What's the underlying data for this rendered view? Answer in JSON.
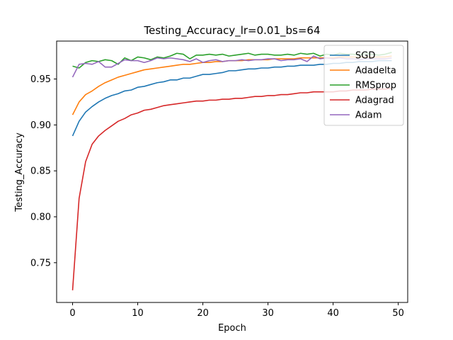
{
  "chart_data": {
    "type": "line",
    "title": "Testing_Accuracy_lr=0.01_bs=64",
    "xlabel": "Epoch",
    "ylabel": "Testing_Accuracy",
    "xlim": [
      -2.45,
      51.45
    ],
    "ylim": [
      0.7067,
      0.9913
    ],
    "xticks": [
      "0",
      "10",
      "20",
      "30",
      "40",
      "50"
    ],
    "yticks": [
      "0.75",
      "0.80",
      "0.85",
      "0.90",
      "0.95"
    ],
    "grid": false,
    "legend_position": "top-right",
    "x": [
      0,
      1,
      2,
      3,
      4,
      5,
      6,
      7,
      8,
      9,
      10,
      11,
      12,
      13,
      14,
      15,
      16,
      17,
      18,
      19,
      20,
      21,
      22,
      23,
      24,
      25,
      26,
      27,
      28,
      29,
      30,
      31,
      32,
      33,
      34,
      35,
      36,
      37,
      38,
      39,
      40,
      41,
      42,
      43,
      44,
      45,
      46,
      47,
      48,
      49
    ],
    "series": [
      {
        "name": "SGD",
        "color": "#1f77b4",
        "values": [
          0.888,
          0.904,
          0.914,
          0.92,
          0.925,
          0.929,
          0.932,
          0.934,
          0.937,
          0.938,
          0.941,
          0.942,
          0.944,
          0.946,
          0.947,
          0.949,
          0.949,
          0.951,
          0.951,
          0.953,
          0.955,
          0.955,
          0.956,
          0.957,
          0.959,
          0.959,
          0.96,
          0.961,
          0.961,
          0.962,
          0.962,
          0.963,
          0.963,
          0.964,
          0.964,
          0.965,
          0.965,
          0.965,
          0.966,
          0.966,
          0.967,
          0.967,
          0.968,
          0.968,
          0.969,
          0.969,
          0.969,
          0.97,
          0.97,
          0.97
        ]
      },
      {
        "name": "Adadelta",
        "color": "#ff7f0e",
        "values": [
          0.911,
          0.925,
          0.933,
          0.937,
          0.942,
          0.946,
          0.949,
          0.952,
          0.954,
          0.956,
          0.958,
          0.96,
          0.961,
          0.962,
          0.963,
          0.964,
          0.965,
          0.966,
          0.966,
          0.967,
          0.968,
          0.968,
          0.969,
          0.969,
          0.97,
          0.97,
          0.97,
          0.971,
          0.971,
          0.971,
          0.971,
          0.972,
          0.972,
          0.972,
          0.972,
          0.973,
          0.973,
          0.973,
          0.973,
          0.973,
          0.973,
          0.974,
          0.974,
          0.974,
          0.974,
          0.974,
          0.974,
          0.974,
          0.974,
          0.975
        ]
      },
      {
        "name": "RMSprop",
        "color": "#2ca02c",
        "values": [
          0.964,
          0.962,
          0.968,
          0.97,
          0.969,
          0.971,
          0.97,
          0.966,
          0.973,
          0.97,
          0.974,
          0.973,
          0.971,
          0.974,
          0.973,
          0.975,
          0.978,
          0.977,
          0.972,
          0.976,
          0.976,
          0.977,
          0.976,
          0.977,
          0.975,
          0.976,
          0.977,
          0.978,
          0.976,
          0.977,
          0.977,
          0.976,
          0.976,
          0.977,
          0.976,
          0.978,
          0.977,
          0.978,
          0.975,
          0.977,
          0.976,
          0.978,
          0.977,
          0.977,
          0.976,
          0.978,
          0.977,
          0.976,
          0.977,
          0.979
        ]
      },
      {
        "name": "Adagrad",
        "color": "#d62728",
        "values": [
          0.72,
          0.82,
          0.86,
          0.879,
          0.888,
          0.894,
          0.899,
          0.904,
          0.907,
          0.911,
          0.913,
          0.916,
          0.917,
          0.919,
          0.921,
          0.922,
          0.923,
          0.924,
          0.925,
          0.926,
          0.926,
          0.927,
          0.927,
          0.928,
          0.928,
          0.929,
          0.929,
          0.93,
          0.931,
          0.931,
          0.932,
          0.932,
          0.933,
          0.933,
          0.934,
          0.935,
          0.935,
          0.936,
          0.936,
          0.936,
          0.936,
          0.937,
          0.937,
          0.938,
          0.938,
          0.938,
          0.939,
          0.939,
          0.939,
          0.94
        ]
      },
      {
        "name": "Adam",
        "color": "#9467bd",
        "values": [
          0.952,
          0.966,
          0.967,
          0.966,
          0.969,
          0.963,
          0.963,
          0.967,
          0.971,
          0.97,
          0.97,
          0.968,
          0.97,
          0.973,
          0.972,
          0.973,
          0.972,
          0.971,
          0.969,
          0.972,
          0.968,
          0.97,
          0.971,
          0.969,
          0.97,
          0.97,
          0.971,
          0.97,
          0.971,
          0.971,
          0.972,
          0.972,
          0.97,
          0.971,
          0.971,
          0.972,
          0.969,
          0.975,
          0.972,
          0.973,
          0.972,
          0.973,
          0.972,
          0.972,
          0.971,
          0.972,
          0.972,
          0.972,
          0.972,
          0.973
        ]
      }
    ]
  }
}
